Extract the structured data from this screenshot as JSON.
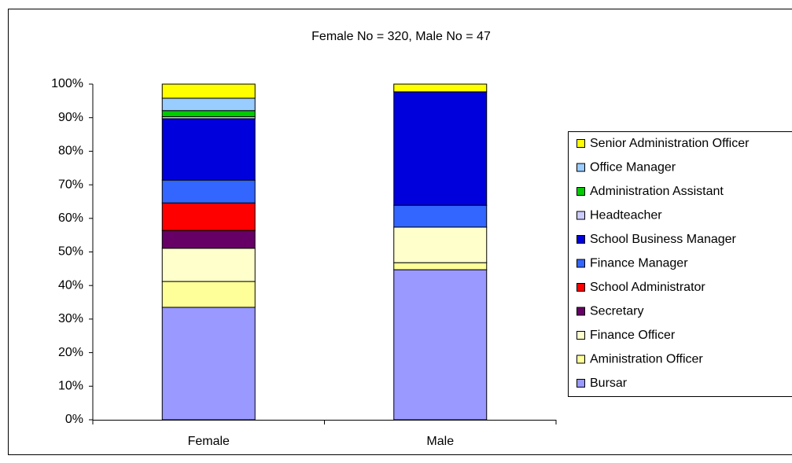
{
  "chart_data": {
    "type": "stacked_bar_100",
    "title": "Female No = 320, Male No = 47",
    "categories": [
      "Female",
      "Male"
    ],
    "series": [
      {
        "name": "Bursar",
        "color": "#9999ff",
        "values": [
          33.5,
          44.7
        ]
      },
      {
        "name": "Aministration Officer",
        "color": "#ffff99",
        "values": [
          7.7,
          2.1
        ]
      },
      {
        "name": "Finance Officer",
        "color": "#ffffcc",
        "values": [
          9.9,
          10.6
        ]
      },
      {
        "name": "Secretary",
        "color": "#660066",
        "values": [
          5.3,
          0
        ]
      },
      {
        "name": "School Administrator",
        "color": "#ff0000",
        "values": [
          8.2,
          0
        ]
      },
      {
        "name": "Finance Manager",
        "color": "#3366ff",
        "values": [
          6.8,
          6.5
        ]
      },
      {
        "name": "School Business Manager",
        "color": "#0000dd",
        "values": [
          18.3,
          33.8
        ]
      },
      {
        "name": "Headteacher",
        "color": "#ccccff",
        "values": [
          0.6,
          0
        ]
      },
      {
        "name": "Administration Assistant",
        "color": "#00cc00",
        "values": [
          1.8,
          0
        ]
      },
      {
        "name": "Office Manager",
        "color": "#99ccff",
        "values": [
          3.7,
          0
        ]
      },
      {
        "name": "Senior Administration Officer",
        "color": "#ffff00",
        "values": [
          4.2,
          2.3
        ]
      }
    ],
    "ylim": [
      0,
      100
    ],
    "yticks": [
      {
        "value": 0,
        "label": "0%"
      },
      {
        "value": 10,
        "label": "10%"
      },
      {
        "value": 20,
        "label": "20%"
      },
      {
        "value": 30,
        "label": "30%"
      },
      {
        "value": 40,
        "label": "40%"
      },
      {
        "value": 50,
        "label": "50%"
      },
      {
        "value": 60,
        "label": "60%"
      },
      {
        "value": 70,
        "label": "70%"
      },
      {
        "value": 80,
        "label": "80%"
      },
      {
        "value": 90,
        "label": "90%"
      },
      {
        "value": 100,
        "label": "100%"
      }
    ],
    "grid": false,
    "legend": "right"
  }
}
